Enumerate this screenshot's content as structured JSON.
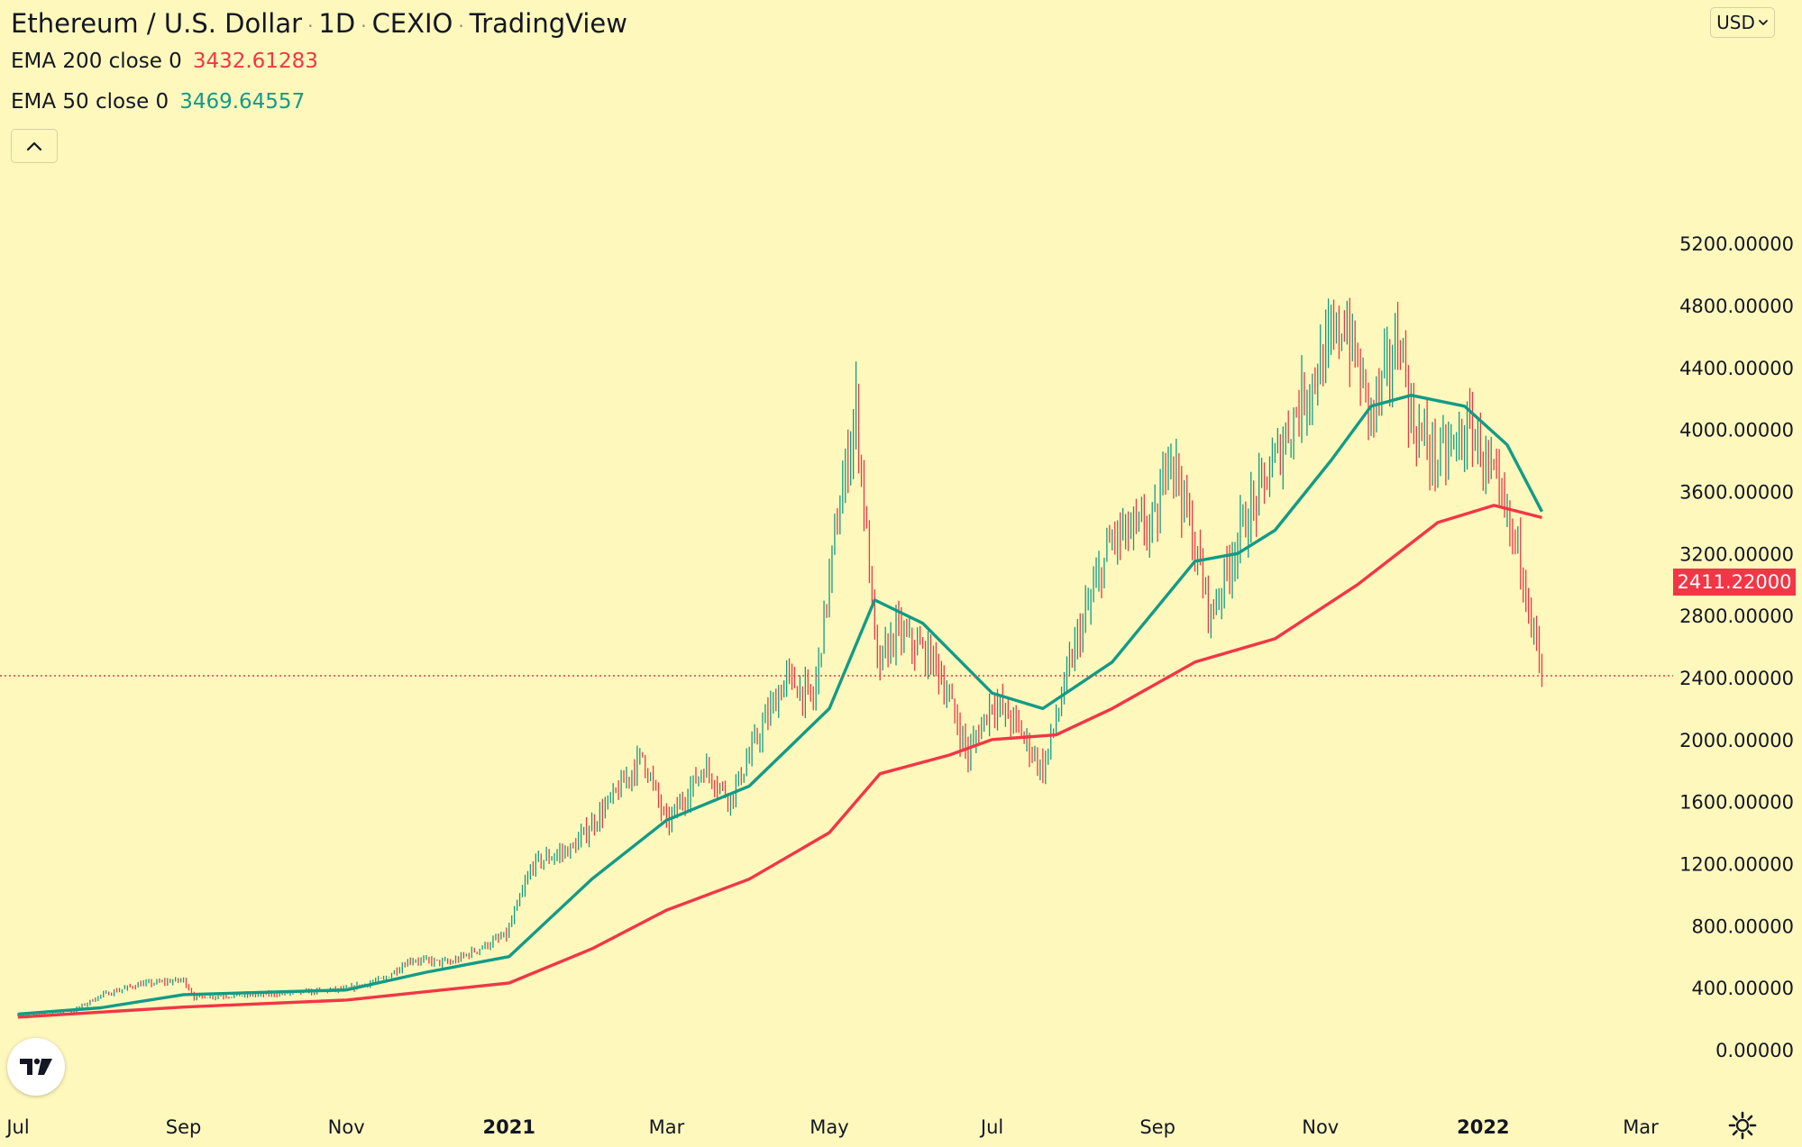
{
  "header": {
    "symbol": "Ethereum / U.S. Dollar",
    "interval": "1D",
    "exchange": "CEXIO",
    "source": "TradingView"
  },
  "indicators": [
    {
      "label": "EMA 200 close 0",
      "value": "3432.61283",
      "color": "#f23645"
    },
    {
      "label": "EMA 50 close 0",
      "value": "3469.64557",
      "color": "#129b86"
    }
  ],
  "controls": {
    "currency": "USD",
    "collapse_icon": "chevron-up-icon",
    "logo_icon": "tradingview-logo-icon",
    "settings_icon": "gear-icon"
  },
  "last_price": "2411.22000",
  "colors": {
    "background": "#fff8bd",
    "up": "#129b86",
    "down": "#f23645",
    "ema50": "#129b86",
    "ema200": "#f23645"
  },
  "chart_data": {
    "type": "line",
    "y_ticks": [
      "0.00000",
      "400.00000",
      "800.00000",
      "1200.00000",
      "1600.00000",
      "2000.00000",
      "2400.00000",
      "2800.00000",
      "3200.00000",
      "3600.00000",
      "4000.00000",
      "4400.00000",
      "4800.00000",
      "5200.00000"
    ],
    "ylim": [
      0,
      5200
    ],
    "x_ticks": [
      {
        "label": "Jul",
        "date": "2020-07-01",
        "bold": false
      },
      {
        "label": "Sep",
        "date": "2020-09-01",
        "bold": false
      },
      {
        "label": "Nov",
        "date": "2020-11-01",
        "bold": false
      },
      {
        "label": "2021",
        "date": "2021-01-01",
        "bold": true
      },
      {
        "label": "Mar",
        "date": "2021-03-01",
        "bold": false
      },
      {
        "label": "May",
        "date": "2021-05-01",
        "bold": false
      },
      {
        "label": "Jul",
        "date": "2021-07-01",
        "bold": false
      },
      {
        "label": "Sep",
        "date": "2021-09-01",
        "bold": false
      },
      {
        "label": "Nov",
        "date": "2021-11-01",
        "bold": false
      },
      {
        "label": "2022",
        "date": "2022-01-01",
        "bold": true
      },
      {
        "label": "Mar",
        "date": "2022-03-01",
        "bold": false
      }
    ],
    "price_path": [
      [
        "2020-07-01",
        225
      ],
      [
        "2020-07-20",
        235
      ],
      [
        "2020-08-01",
        350
      ],
      [
        "2020-08-15",
        420
      ],
      [
        "2020-09-01",
        450
      ],
      [
        "2020-09-05",
        340
      ],
      [
        "2020-09-30",
        355
      ],
      [
        "2020-10-15",
        370
      ],
      [
        "2020-11-01",
        390
      ],
      [
        "2020-11-15",
        455
      ],
      [
        "2020-11-25",
        580
      ],
      [
        "2020-12-10",
        560
      ],
      [
        "2020-12-31",
        740
      ],
      [
        "2021-01-10",
        1200
      ],
      [
        "2021-01-25",
        1300
      ],
      [
        "2021-02-10",
        1650
      ],
      [
        "2021-02-20",
        1900
      ],
      [
        "2021-03-01",
        1450
      ],
      [
        "2021-03-15",
        1820
      ],
      [
        "2021-03-25",
        1620
      ],
      [
        "2021-04-05",
        2050
      ],
      [
        "2021-04-15",
        2400
      ],
      [
        "2021-04-25",
        2250
      ],
      [
        "2021-05-03",
        3300
      ],
      [
        "2021-05-11",
        4150
      ],
      [
        "2021-05-19",
        2450
      ],
      [
        "2021-05-26",
        2700
      ],
      [
        "2021-06-10",
        2500
      ],
      [
        "2021-06-22",
        1900
      ],
      [
        "2021-07-01",
        2250
      ],
      [
        "2021-07-10",
        2100
      ],
      [
        "2021-07-20",
        1800
      ],
      [
        "2021-08-01",
        2600
      ],
      [
        "2021-08-15",
        3300
      ],
      [
        "2021-09-01",
        3400
      ],
      [
        "2021-09-05",
        3950
      ],
      [
        "2021-09-21",
        2800
      ],
      [
        "2021-10-01",
        3300
      ],
      [
        "2021-10-15",
        3800
      ],
      [
        "2021-10-25",
        4200
      ],
      [
        "2021-11-10",
        4700
      ],
      [
        "2021-11-20",
        4100
      ],
      [
        "2021-12-01",
        4600
      ],
      [
        "2021-12-05",
        4050
      ],
      [
        "2021-12-15",
        3800
      ],
      [
        "2021-12-28",
        4000
      ],
      [
        "2022-01-05",
        3650
      ],
      [
        "2022-01-12",
        3300
      ],
      [
        "2022-01-15",
        3200
      ],
      [
        "2022-01-21",
        2600
      ],
      [
        "2022-01-23",
        2411
      ]
    ],
    "ema50": [
      [
        "2020-07-01",
        230
      ],
      [
        "2020-08-01",
        270
      ],
      [
        "2020-09-01",
        355
      ],
      [
        "2020-10-01",
        370
      ],
      [
        "2020-11-01",
        385
      ],
      [
        "2020-12-01",
        500
      ],
      [
        "2021-01-01",
        600
      ],
      [
        "2021-02-01",
        1100
      ],
      [
        "2021-03-01",
        1480
      ],
      [
        "2021-04-01",
        1700
      ],
      [
        "2021-05-01",
        2200
      ],
      [
        "2021-05-18",
        2900
      ],
      [
        "2021-06-05",
        2750
      ],
      [
        "2021-07-01",
        2300
      ],
      [
        "2021-07-20",
        2200
      ],
      [
        "2021-08-15",
        2500
      ],
      [
        "2021-09-15",
        3150
      ],
      [
        "2021-10-01",
        3200
      ],
      [
        "2021-10-15",
        3350
      ],
      [
        "2021-11-05",
        3800
      ],
      [
        "2021-11-20",
        4150
      ],
      [
        "2021-12-05",
        4220
      ],
      [
        "2021-12-25",
        4150
      ],
      [
        "2022-01-10",
        3900
      ],
      [
        "2022-01-23",
        3470
      ]
    ],
    "ema200": [
      [
        "2020-07-01",
        210
      ],
      [
        "2020-09-01",
        275
      ],
      [
        "2020-11-01",
        320
      ],
      [
        "2021-01-01",
        430
      ],
      [
        "2021-02-01",
        650
      ],
      [
        "2021-03-01",
        900
      ],
      [
        "2021-04-01",
        1100
      ],
      [
        "2021-05-01",
        1400
      ],
      [
        "2021-05-20",
        1780
      ],
      [
        "2021-06-15",
        1900
      ],
      [
        "2021-07-01",
        2000
      ],
      [
        "2021-07-25",
        2030
      ],
      [
        "2021-08-15",
        2200
      ],
      [
        "2021-09-15",
        2500
      ],
      [
        "2021-10-15",
        2650
      ],
      [
        "2021-11-15",
        3000
      ],
      [
        "2021-12-15",
        3400
      ],
      [
        "2022-01-05",
        3510
      ],
      [
        "2022-01-23",
        3432
      ]
    ]
  }
}
